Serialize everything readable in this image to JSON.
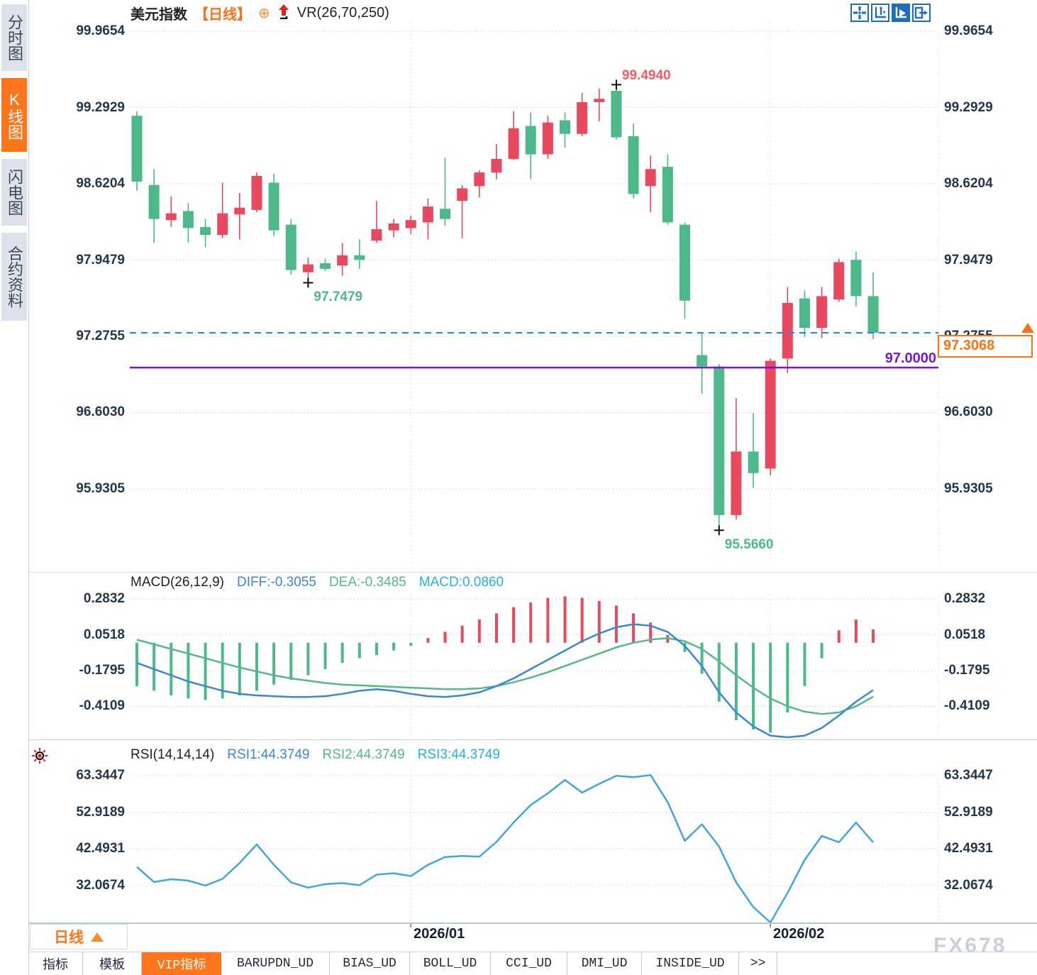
{
  "sidebar": {
    "tabs": [
      {
        "id": "minute-chart",
        "label": "分时图",
        "active": false
      },
      {
        "id": "candle-chart",
        "label": "K线图",
        "active": true
      },
      {
        "id": "flash-chart",
        "label": "闪电图",
        "active": false
      },
      {
        "id": "contract-info",
        "label": "合约资料",
        "active": false
      }
    ]
  },
  "titlebar": {
    "symbol": "美元指数",
    "period": "【日线】",
    "plus_icon": "⊕",
    "indicator": "VR(26,70,250)"
  },
  "toolbar": {
    "icons": [
      "crosshair-icon",
      "axis-scale-icon",
      "axis-play-icon",
      "pan-right-icon"
    ],
    "active_index": 2
  },
  "bottom": {
    "period_label": "日线",
    "watermark": "FX678",
    "tabs": [
      {
        "id": "indicators",
        "label": "指标",
        "active": false
      },
      {
        "id": "templates",
        "label": "模板",
        "active": false
      },
      {
        "id": "vip-indicators",
        "label": "VIP指标",
        "active": true
      },
      {
        "id": "barupdn_ud",
        "label": "BARUPDN_UD",
        "active": false
      },
      {
        "id": "bias_ud",
        "label": "BIAS_UD",
        "active": false
      },
      {
        "id": "boll_ud",
        "label": "BOLL_UD",
        "active": false
      },
      {
        "id": "cci_ud",
        "label": "CCI_UD",
        "active": false
      },
      {
        "id": "dmi_ud",
        "label": "DMI_UD",
        "active": false
      },
      {
        "id": "inside_ud",
        "label": "INSIDE_UD",
        "active": false
      },
      {
        "id": "more",
        "label": ">>",
        "active": false
      }
    ]
  },
  "chart_data": [
    {
      "type": "candlestick",
      "title": "美元指数 日线",
      "overlay_indicator": "VR(26,70,250)",
      "up_color": "#e8495f",
      "down_color": "#4db98a",
      "y_axis": {
        "ticks": [
          "99.9654",
          "99.2929",
          "98.6204",
          "97.9479",
          "97.2755",
          "96.6030",
          "95.9305"
        ]
      },
      "x_axis": {
        "ticks": [
          "2026/01",
          "2026/02"
        ]
      },
      "candles_ohlc": [
        [
          99.22,
          99.26,
          98.56,
          98.64
        ],
        [
          98.61,
          98.75,
          98.1,
          98.31
        ],
        [
          98.3,
          98.51,
          98.24,
          98.36
        ],
        [
          98.38,
          98.45,
          98.1,
          98.23
        ],
        [
          98.24,
          98.31,
          98.06,
          98.17
        ],
        [
          98.17,
          98.63,
          98.14,
          98.36
        ],
        [
          98.35,
          98.54,
          98.13,
          98.41
        ],
        [
          98.39,
          98.72,
          98.37,
          98.69
        ],
        [
          98.63,
          98.71,
          98.16,
          98.21
        ],
        [
          98.26,
          98.31,
          97.82,
          97.86
        ],
        [
          97.84,
          97.97,
          97.7479,
          97.91
        ],
        [
          97.92,
          97.96,
          97.85,
          97.87
        ],
        [
          97.9,
          98.1,
          97.81,
          97.99
        ],
        [
          97.99,
          98.13,
          97.87,
          97.95
        ],
        [
          98.12,
          98.47,
          98.1,
          98.22
        ],
        [
          98.21,
          98.31,
          98.15,
          98.27
        ],
        [
          98.23,
          98.34,
          98.18,
          98.3
        ],
        [
          98.28,
          98.49,
          98.13,
          98.42
        ],
        [
          98.4,
          98.85,
          98.25,
          98.31
        ],
        [
          98.47,
          98.61,
          98.14,
          98.58
        ],
        [
          98.6,
          98.74,
          98.5,
          98.72
        ],
        [
          98.72,
          98.97,
          98.66,
          98.84
        ],
        [
          98.84,
          99.26,
          98.83,
          99.11
        ],
        [
          99.13,
          99.25,
          98.66,
          98.88
        ],
        [
          98.88,
          99.22,
          98.84,
          99.16
        ],
        [
          99.18,
          99.25,
          98.94,
          99.06
        ],
        [
          99.06,
          99.42,
          99.04,
          99.34
        ],
        [
          99.34,
          99.46,
          99.17,
          99.37
        ],
        [
          99.44,
          99.494,
          99.01,
          99.03
        ],
        [
          99.04,
          99.15,
          98.49,
          98.53
        ],
        [
          98.6,
          98.87,
          98.37,
          98.75
        ],
        [
          98.77,
          98.88,
          98.26,
          98.28
        ],
        [
          98.26,
          98.28,
          97.43,
          97.59
        ],
        [
          97.11,
          97.3,
          96.77,
          97.01
        ],
        [
          97.01,
          97.03,
          95.566,
          95.7
        ],
        [
          95.7,
          96.73,
          95.66,
          96.26
        ],
        [
          96.26,
          96.6,
          95.94,
          96.07
        ],
        [
          96.11,
          97.08,
          96.05,
          97.06
        ],
        [
          97.08,
          97.71,
          96.95,
          97.57
        ],
        [
          97.61,
          97.68,
          97.27,
          97.35
        ],
        [
          97.35,
          97.71,
          97.26,
          97.63
        ],
        [
          97.6,
          97.96,
          97.58,
          97.93
        ],
        [
          97.95,
          98.02,
          97.54,
          97.63
        ],
        [
          97.63,
          97.84,
          97.25,
          97.3068
        ]
      ],
      "annotations": [
        {
          "text": "99.4940",
          "value": 99.494,
          "candle_index": 28,
          "kind": "high",
          "color": "#f25b6e"
        },
        {
          "text": "97.7479",
          "value": 97.7479,
          "candle_index": 10,
          "kind": "low",
          "color": "#4db98a"
        },
        {
          "text": "95.5660",
          "value": 95.566,
          "candle_index": 34,
          "kind": "low",
          "color": "#4db98a"
        }
      ],
      "hlines": [
        {
          "style": "dashed",
          "value": 97.3068,
          "color": "#1f86e0"
        },
        {
          "style": "solid",
          "value": 97.0,
          "label": "97.0000",
          "color": "#7d16d2"
        }
      ],
      "last_price": "97.3068",
      "last_price_color": "#f97316"
    },
    {
      "type": "macd",
      "header": [
        {
          "text": "MACD(26,12,9)",
          "color": "#222222"
        },
        {
          "text": "DIFF:-0.3055",
          "color": "#3a87d6"
        },
        {
          "text": "DEA:-0.3485",
          "color": "#53b987"
        },
        {
          "text": "MACD:0.0860",
          "color": "#25b0e8"
        }
      ],
      "y_axis": {
        "ticks": [
          "0.2832",
          "0.0518",
          "-0.1795",
          "-0.4109"
        ]
      },
      "hist_up_color": "#e8495f",
      "hist_down_color": "#4db98a",
      "diff_color": "#3a87d6",
      "dea_color": "#53b987",
      "hist": [
        -0.28,
        -0.31,
        -0.34,
        -0.36,
        -0.37,
        -0.36,
        -0.34,
        -0.31,
        -0.27,
        -0.24,
        -0.21,
        -0.17,
        -0.13,
        -0.1,
        -0.08,
        -0.05,
        -0.02,
        0.03,
        0.07,
        0.11,
        0.15,
        0.19,
        0.23,
        0.26,
        0.29,
        0.3,
        0.29,
        0.27,
        0.24,
        0.19,
        0.13,
        0.05,
        -0.06,
        -0.2,
        -0.38,
        -0.5,
        -0.56,
        -0.58,
        -0.45,
        -0.28,
        -0.1,
        0.08,
        0.15,
        0.086
      ],
      "diff": [
        -0.13,
        -0.17,
        -0.21,
        -0.25,
        -0.28,
        -0.31,
        -0.33,
        -0.34,
        -0.345,
        -0.35,
        -0.35,
        -0.345,
        -0.33,
        -0.31,
        -0.3,
        -0.31,
        -0.33,
        -0.345,
        -0.35,
        -0.34,
        -0.32,
        -0.28,
        -0.23,
        -0.17,
        -0.11,
        -0.05,
        0.01,
        0.06,
        0.1,
        0.12,
        0.11,
        0.07,
        -0.02,
        -0.15,
        -0.32,
        -0.45,
        -0.54,
        -0.6,
        -0.62,
        -0.6,
        -0.55,
        -0.47,
        -0.38,
        -0.3055
      ],
      "dea": [
        0.02,
        -0.01,
        -0.04,
        -0.07,
        -0.1,
        -0.13,
        -0.16,
        -0.185,
        -0.21,
        -0.23,
        -0.245,
        -0.26,
        -0.27,
        -0.275,
        -0.28,
        -0.285,
        -0.29,
        -0.295,
        -0.3,
        -0.3,
        -0.295,
        -0.28,
        -0.255,
        -0.225,
        -0.19,
        -0.15,
        -0.11,
        -0.07,
        -0.03,
        0.0,
        0.02,
        0.03,
        0.01,
        -0.04,
        -0.12,
        -0.21,
        -0.29,
        -0.36,
        -0.41,
        -0.445,
        -0.46,
        -0.45,
        -0.41,
        -0.3485
      ]
    },
    {
      "type": "rsi",
      "header": [
        {
          "text": "RSI(14,14,14)",
          "color": "#222222"
        },
        {
          "text": "RSI1:44.3749",
          "color": "#3a87d6"
        },
        {
          "text": "RSI2:44.3749",
          "color": "#53b987"
        },
        {
          "text": "RSI3:44.3749",
          "color": "#25b0e8"
        }
      ],
      "y_axis": {
        "ticks": [
          "63.3447",
          "52.9189",
          "42.4931",
          "32.0674"
        ]
      },
      "line_color": "#42a6dc",
      "rsi": [
        37.4,
        33.1,
        33.9,
        33.5,
        32.1,
        34.0,
        38.5,
        43.8,
        38.0,
        33.0,
        31.5,
        32.5,
        32.8,
        32.2,
        35.2,
        35.6,
        34.8,
        38.0,
        40.2,
        40.5,
        40.3,
        44.5,
        50.0,
        55.0,
        58.3,
        62.1,
        58.5,
        61.0,
        63.3,
        62.9,
        63.5,
        55.8,
        44.8,
        49.5,
        43.2,
        33.0,
        26.0,
        21.6,
        30.0,
        39.4,
        46.2,
        44.4,
        50.0,
        44.3749
      ]
    }
  ]
}
